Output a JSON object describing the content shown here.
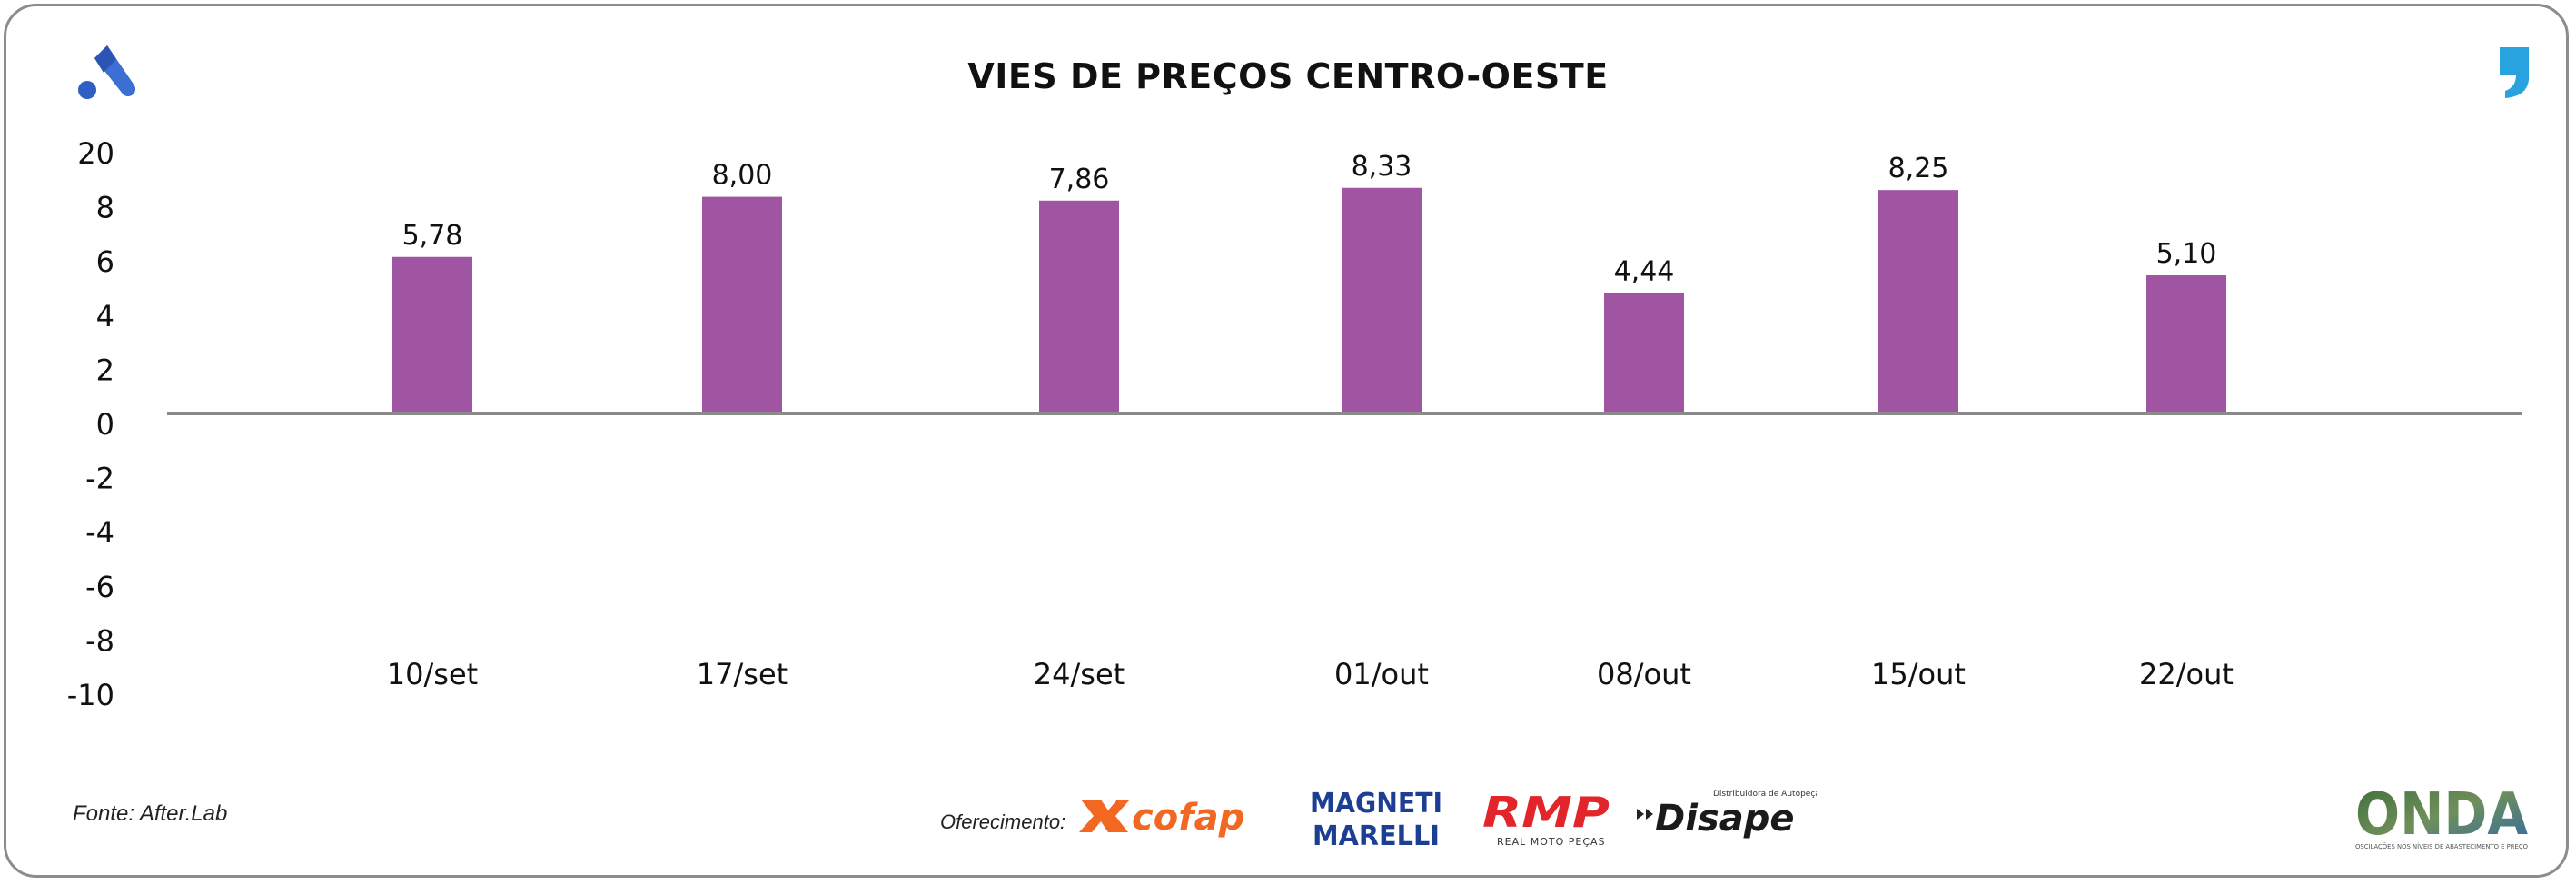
{
  "header": {
    "title": "VIES DE PREÇOS CENTRO-OESTE"
  },
  "chart_data": {
    "type": "bar",
    "title": "VIES DE PREÇOS CENTRO-OESTE",
    "categories": [
      "10/set",
      "17/set",
      "24/set",
      "01/out",
      "08/out",
      "15/out",
      "22/out"
    ],
    "series": [
      {
        "values": [
          5.78,
          8.0,
          7.86,
          8.33,
          4.44,
          8.25,
          5.1
        ],
        "labels": [
          "5,78",
          "8,00",
          "7,86",
          "8,33",
          "4,44",
          "8,25",
          "5,10"
        ]
      }
    ],
    "yticks": [
      "20",
      "8",
      "6",
      "4",
      "2",
      "0",
      "-2",
      "-4",
      "-6",
      "-8",
      "-10"
    ],
    "bar_color": "#a055a3",
    "axis_color": "#8a8a8a",
    "grid": false,
    "legend": "none"
  },
  "footer": {
    "source": "Fonte: After.Lab",
    "sponsor_label": "Oferecimento:",
    "sponsors": [
      "cofap",
      "MAGNETI MARELLI",
      "RMP",
      "Disape"
    ],
    "sponsor_sublabels": {
      "rmp": "REAL MOTO PEÇAS",
      "disape": "Distribuidora de Autopeças"
    },
    "brand": "ONDA",
    "brand_tagline": "OSCILAÇÕES NOS NÍVEIS DE ABASTECIMENTO E PREÇO"
  },
  "colors": {
    "brand_blue": "#2f5fc4",
    "quote_blue": "#29a3e0",
    "cofap_orange": "#f26722",
    "magneti_blue": "#1c3f94",
    "rmp_red": "#e1252a",
    "onda_green": "#4a7a3e"
  },
  "icons": [
    "brand-a-icon",
    "quote-mark-icon"
  ]
}
